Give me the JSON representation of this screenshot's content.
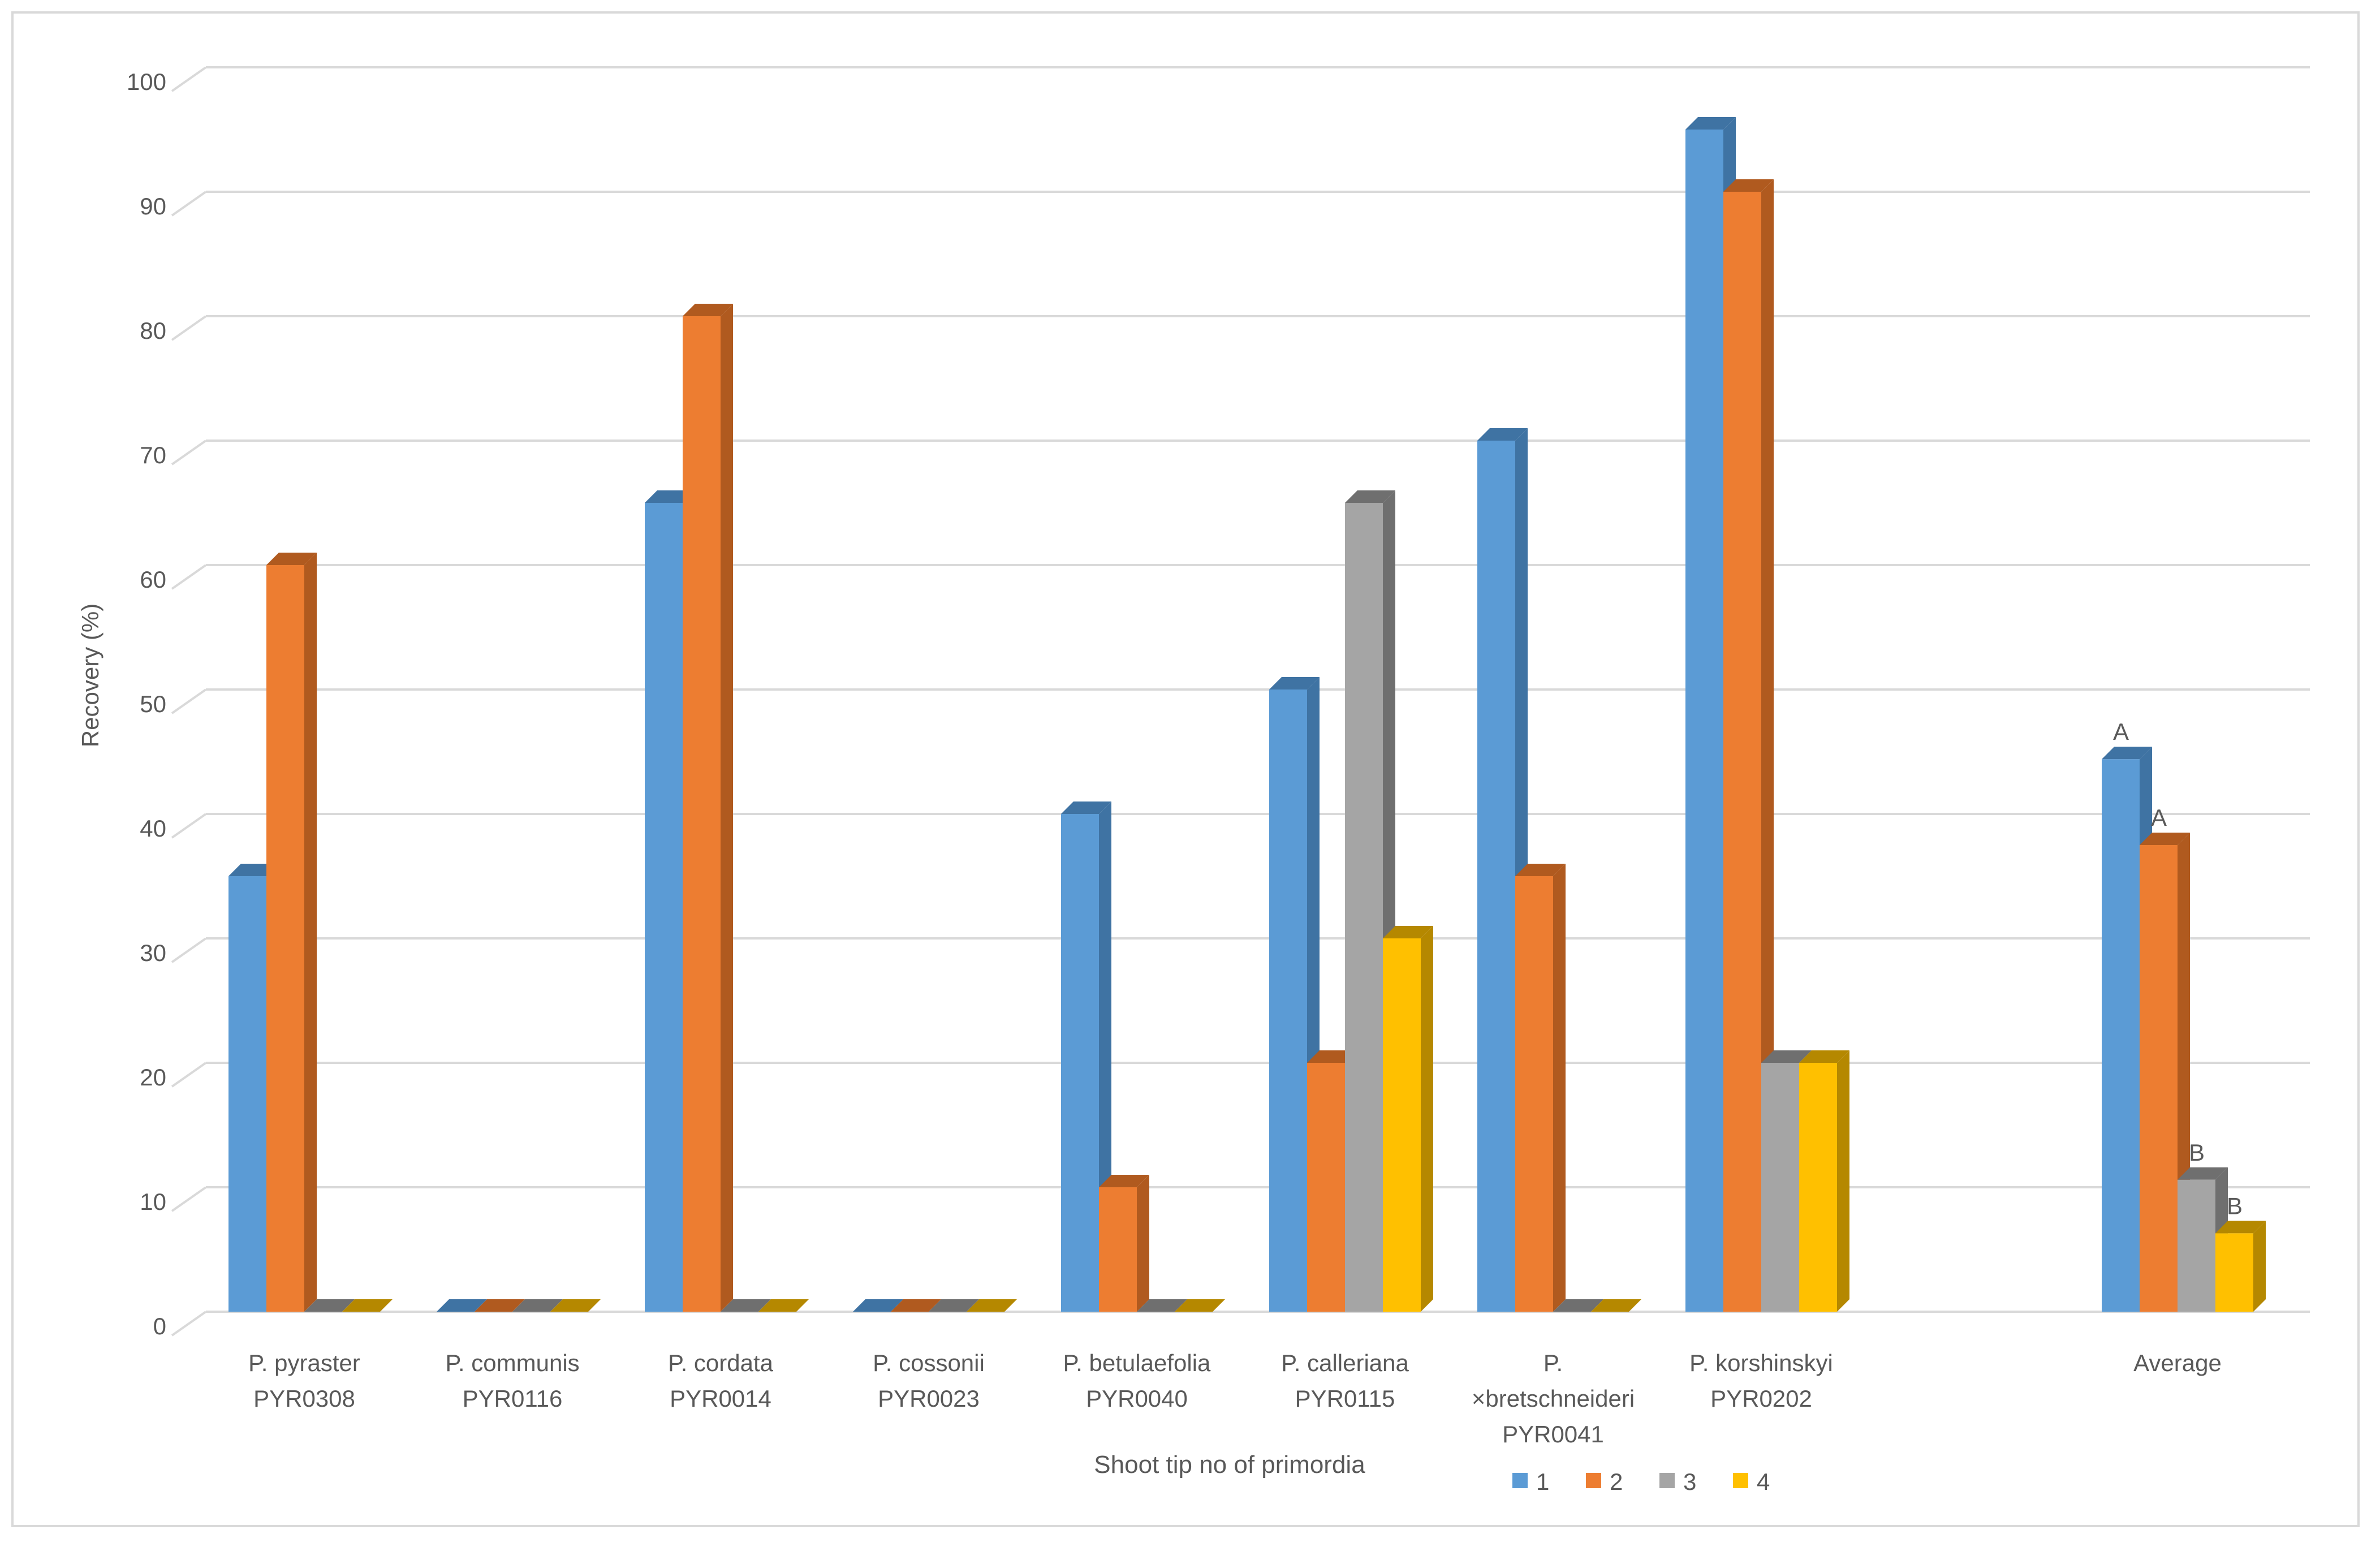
{
  "chart_data": {
    "type": "bar",
    "title": "",
    "xlabel": "Shoot tip no of primordia",
    "ylabel": "Recovery (%)",
    "ylim": [
      0,
      100
    ],
    "yticks": [
      0,
      10,
      20,
      30,
      40,
      50,
      60,
      70,
      80,
      90,
      100
    ],
    "grid": true,
    "legend_position": "bottom-center",
    "categories": [
      [
        "P. pyraster",
        "PYR0308"
      ],
      [
        "P. communis",
        "PYR0116"
      ],
      [
        "P. cordata",
        "PYR0014"
      ],
      [
        "P. cossonii",
        "PYR0023"
      ],
      [
        "P. betulaefolia",
        "PYR0040"
      ],
      [
        "P. calleriana",
        "PYR0115"
      ],
      [
        "P.",
        "×bretschneideri",
        "PYR0041"
      ],
      [
        "P. korshinskyi",
        "PYR0202"
      ],
      [],
      [
        "Average"
      ]
    ],
    "series": [
      {
        "name": "1",
        "color": "#5b9bd5",
        "side": "#3f73a3",
        "values": [
          35,
          0,
          65,
          0,
          40,
          50,
          70,
          95,
          null,
          44.4
        ]
      },
      {
        "name": "2",
        "color": "#ed7d31",
        "side": "#b05a1f",
        "values": [
          60,
          0,
          80,
          0,
          10,
          20,
          35,
          90,
          null,
          37.5
        ]
      },
      {
        "name": "3",
        "color": "#a5a5a5",
        "side": "#6f6f6f",
        "values": [
          0,
          0,
          0,
          0,
          0,
          65,
          0,
          20,
          null,
          10.6
        ]
      },
      {
        "name": "4",
        "color": "#ffc000",
        "side": "#b58800",
        "values": [
          0,
          0,
          0,
          0,
          0,
          30,
          0,
          20,
          null,
          6.3
        ]
      }
    ],
    "annotations": [
      {
        "series": 0,
        "category": 9,
        "text": "A"
      },
      {
        "series": 1,
        "category": 9,
        "text": "A"
      },
      {
        "series": 2,
        "category": 9,
        "text": "B"
      },
      {
        "series": 3,
        "category": 9,
        "text": "B"
      }
    ]
  }
}
